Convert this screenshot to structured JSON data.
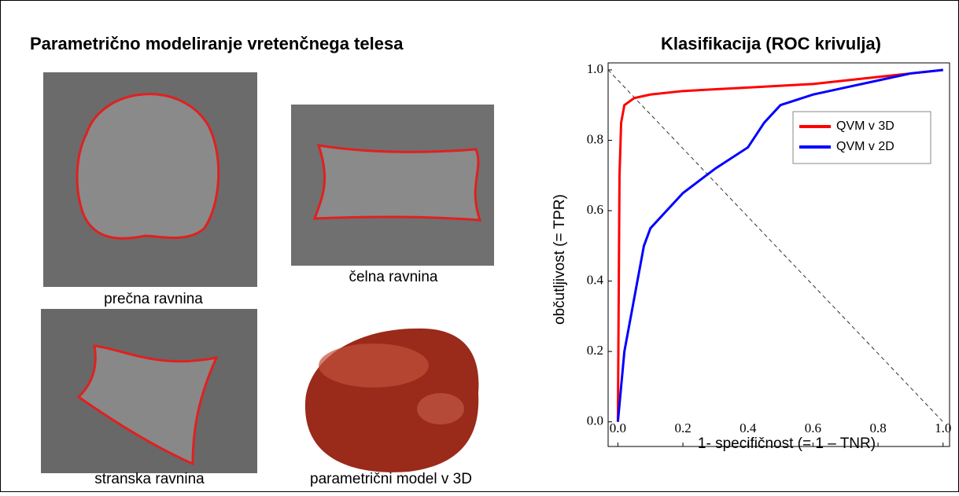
{
  "left_panel": {
    "title": "Parametrično modeliranje vretenčnega telesa",
    "captions": [
      "prečna ravnina",
      "čelna ravnina",
      "stranska ravnina",
      "parametrični model v 3D"
    ]
  },
  "chart_data": {
    "type": "line",
    "title": "Klasifikacija (ROC krivulja)",
    "x_label": "1- specifičnost (= 1 – TNR)",
    "y_label": "občutljivost (= TPR)",
    "xlim": [
      -0.03,
      1.02
    ],
    "ylim": [
      -0.07,
      1.02
    ],
    "xticks": [
      {
        "value": 0,
        "label": "0.0"
      },
      {
        "value": 0.2,
        "label": "0.2"
      },
      {
        "value": 0.4,
        "label": "0.4"
      },
      {
        "value": 0.6,
        "label": "0.6"
      },
      {
        "value": 0.8,
        "label": "0.8"
      },
      {
        "value": 1,
        "label": "1.0"
      }
    ],
    "yticks": [
      {
        "value": 0,
        "label": "0.0"
      },
      {
        "value": 0.2,
        "label": "0.2"
      },
      {
        "value": 0.4,
        "label": "0.4"
      },
      {
        "value": 0.6,
        "label": "0.6"
      },
      {
        "value": 0.8,
        "label": "0.8"
      },
      {
        "value": 1,
        "label": "1.0"
      }
    ],
    "legend": "upper right",
    "series": [
      {
        "name": "QVM v 3D",
        "color": "#ff0000",
        "x": [
          0,
          0.005,
          0.01,
          0.02,
          0.05,
          0.1,
          0.2,
          0.4,
          0.6,
          0.8,
          0.9,
          1
        ],
        "values": [
          0,
          0.7,
          0.85,
          0.9,
          0.92,
          0.93,
          0.94,
          0.95,
          0.96,
          0.98,
          0.99,
          1
        ]
      },
      {
        "name": "QVM v 2D",
        "color": "#0000ff",
        "x": [
          0,
          0.01,
          0.02,
          0.04,
          0.06,
          0.08,
          0.1,
          0.15,
          0.2,
          0.3,
          0.4,
          0.45,
          0.5,
          0.6,
          0.7,
          0.8,
          0.9,
          1
        ],
        "values": [
          0,
          0.1,
          0.2,
          0.3,
          0.4,
          0.5,
          0.55,
          0.6,
          0.65,
          0.72,
          0.78,
          0.85,
          0.9,
          0.93,
          0.95,
          0.97,
          0.99,
          1
        ]
      }
    ]
  }
}
